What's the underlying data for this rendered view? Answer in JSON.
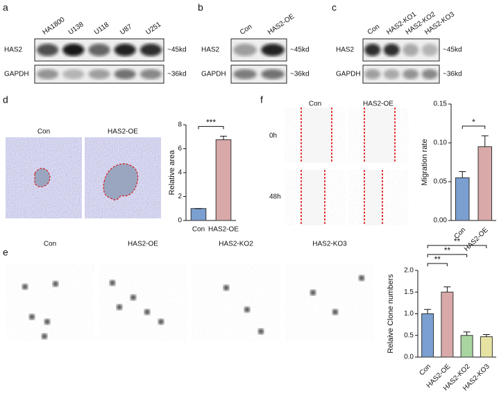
{
  "blots": [
    {
      "label": "a",
      "lanes": [
        "HA1800",
        "U138",
        "U118",
        "U87",
        "U251"
      ],
      "rows": [
        "HAS2",
        "GAPDH"
      ],
      "sizes": [
        "~45kd",
        "~36kd"
      ]
    },
    {
      "label": "b",
      "lanes": [
        "Con",
        "HAS2-OE"
      ],
      "rows": [
        "HAS2",
        "GAPDH"
      ],
      "sizes": [
        "~45kd",
        "~36kd"
      ]
    },
    {
      "label": "c",
      "lanes": [
        "Con",
        "HAS2-KO1",
        "HAS2-KO2",
        "HAS2-KO3"
      ],
      "rows": [
        "HAS2",
        "GAPDH"
      ],
      "sizes": [
        "~45kd",
        "~36kd"
      ]
    }
  ],
  "images": {
    "d": {
      "label": "d",
      "captions": [
        "Con",
        "HAS2-OE"
      ]
    },
    "f": {
      "label": "f",
      "captions": [
        "Con",
        "HAS2-OE"
      ],
      "rows": [
        "0h",
        "48h"
      ]
    },
    "e": {
      "label": "e",
      "captions": [
        "Con",
        "HAS2-OE",
        "HAS2-KO2",
        "HAS2-KO3"
      ]
    }
  },
  "chart_data": [
    {
      "type": "bar",
      "y_label": "Relative area",
      "categories": [
        "Con",
        "HAS2-OE"
      ],
      "values": [
        1,
        6.75
      ],
      "errors": [
        0,
        0.3
      ],
      "colors": [
        "#7a9fd0",
        "#d8a9a8"
      ],
      "ylim": [
        0,
        8
      ],
      "yticks": [
        0,
        2,
        4,
        6,
        8
      ],
      "annotations": [
        "***"
      ]
    },
    {
      "type": "bar",
      "y_label": "Migration rate",
      "categories": [
        "Con",
        "HAS2-OE"
      ],
      "values": [
        0.055,
        0.095
      ],
      "errors": [
        0.008,
        0.014
      ],
      "colors": [
        "#7a9fd0",
        "#d8a9a8"
      ],
      "ylim": [
        0,
        0.15
      ],
      "yticks": [
        {
          "value": 0,
          "label": "0.00"
        },
        0.05,
        {
          "value": 0.1,
          "label": "0.10"
        },
        0.15
      ],
      "annotations": [
        "*"
      ]
    },
    {
      "type": "bar",
      "y_label": "Relaive Clone numbers",
      "categories": [
        "Con",
        "HAS2-OE",
        "HAS2-KO2",
        "HAS2-KO3"
      ],
      "values": [
        1.0,
        1.5,
        0.5,
        0.47
      ],
      "errors": [
        0.1,
        0.12,
        0.08,
        0.05
      ],
      "colors": [
        "#7a9fd0",
        "#d8a9a8",
        "#a9d5a1",
        "#e7e3a3"
      ],
      "ylim": [
        0,
        2
      ],
      "yticks": [
        {
          "value": 0,
          "label": "0.0"
        },
        0.5,
        {
          "value": 1,
          "label": "1.0"
        },
        1.5,
        {
          "value": 2,
          "label": "2.0"
        }
      ],
      "annotations": [
        "**",
        "**",
        "**"
      ]
    }
  ]
}
